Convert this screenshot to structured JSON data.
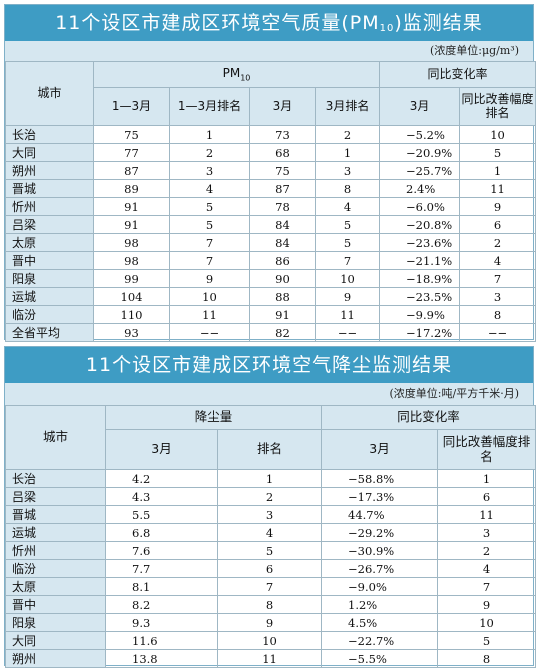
{
  "pm_table": {
    "title_main": "11个设区市建成区环境空气质量(PM",
    "title_sub": "10",
    "title_end": ")监测结果",
    "unit": "(浓度单位:μg/m³)",
    "header": {
      "city": "城市",
      "pm_group": "PM",
      "pm_group_sub": "10",
      "change_group": "同比变化率",
      "col_jan_mar": "1—3月",
      "col_jan_mar_rank": "1—3月排名",
      "col_mar": "3月",
      "col_mar_rank": "3月排名",
      "col_change_mar": "3月",
      "col_change_rank": "同比改善幅度排名"
    },
    "rows": [
      {
        "city": "长治",
        "q1": "75",
        "q1_rank": "1",
        "mar": "73",
        "mar_rank": "2",
        "change": "−5.2%",
        "change_rank": "10"
      },
      {
        "city": "大同",
        "q1": "77",
        "q1_rank": "2",
        "mar": "68",
        "mar_rank": "1",
        "change": "−20.9%",
        "change_rank": "5"
      },
      {
        "city": "朔州",
        "q1": "87",
        "q1_rank": "3",
        "mar": "75",
        "mar_rank": "3",
        "change": "−25.7%",
        "change_rank": "1"
      },
      {
        "city": "晋城",
        "q1": "89",
        "q1_rank": "4",
        "mar": "87",
        "mar_rank": "8",
        "change": "2.4%",
        "change_rank": "11"
      },
      {
        "city": "忻州",
        "q1": "91",
        "q1_rank": "5",
        "mar": "78",
        "mar_rank": "4",
        "change": "−6.0%",
        "change_rank": "9"
      },
      {
        "city": "吕梁",
        "q1": "91",
        "q1_rank": "5",
        "mar": "84",
        "mar_rank": "5",
        "change": "−20.8%",
        "change_rank": "6"
      },
      {
        "city": "太原",
        "q1": "98",
        "q1_rank": "7",
        "mar": "84",
        "mar_rank": "5",
        "change": "−23.6%",
        "change_rank": "2"
      },
      {
        "city": "晋中",
        "q1": "98",
        "q1_rank": "7",
        "mar": "86",
        "mar_rank": "7",
        "change": "−21.1%",
        "change_rank": "4"
      },
      {
        "city": "阳泉",
        "q1": "99",
        "q1_rank": "9",
        "mar": "90",
        "mar_rank": "10",
        "change": "−18.9%",
        "change_rank": "7"
      },
      {
        "city": "运城",
        "q1": "104",
        "q1_rank": "10",
        "mar": "88",
        "mar_rank": "9",
        "change": "−23.5%",
        "change_rank": "3"
      },
      {
        "city": "临汾",
        "q1": "110",
        "q1_rank": "11",
        "mar": "91",
        "mar_rank": "11",
        "change": "−9.9%",
        "change_rank": "8"
      },
      {
        "city": "全省平均",
        "q1": "93",
        "q1_rank": "−−",
        "mar": "82",
        "mar_rank": "−−",
        "change": "−17.2%",
        "change_rank": "−−"
      }
    ]
  },
  "dust_table": {
    "title": "11个设区市建成区环境空气降尘监测结果",
    "unit": "(浓度单位:吨/平方千米·月)",
    "header": {
      "city": "城市",
      "dust_group": "降尘量",
      "change_group": "同比变化率",
      "col_mar": "3月",
      "col_rank": "排名",
      "col_change_mar": "3月",
      "col_change_rank": "同比改善幅度排名"
    },
    "rows": [
      {
        "city": "长治",
        "mar": "4.2",
        "rank": "1",
        "change": "−58.8%",
        "change_rank": "1"
      },
      {
        "city": "吕梁",
        "mar": "4.3",
        "rank": "2",
        "change": "−17.3%",
        "change_rank": "6"
      },
      {
        "city": "晋城",
        "mar": "5.5",
        "rank": "3",
        "change": "44.7%",
        "change_rank": "11"
      },
      {
        "city": "运城",
        "mar": "6.8",
        "rank": "4",
        "change": "−29.2%",
        "change_rank": "3"
      },
      {
        "city": "忻州",
        "mar": "7.6",
        "rank": "5",
        "change": "−30.9%",
        "change_rank": "2"
      },
      {
        "city": "临汾",
        "mar": "7.7",
        "rank": "6",
        "change": "−26.7%",
        "change_rank": "4"
      },
      {
        "city": "太原",
        "mar": "8.1",
        "rank": "7",
        "change": "−9.0%",
        "change_rank": "7"
      },
      {
        "city": "晋中",
        "mar": "8.2",
        "rank": "8",
        "change": "1.2%",
        "change_rank": "9"
      },
      {
        "city": "阳泉",
        "mar": "9.3",
        "rank": "9",
        "change": "4.5%",
        "change_rank": "10"
      },
      {
        "city": "大同",
        "mar": "11.6",
        "rank": "10",
        "change": "−22.7%",
        "change_rank": "5"
      },
      {
        "city": "朔州",
        "mar": "13.8",
        "rank": "11",
        "change": "−5.5%",
        "change_rank": "8"
      }
    ]
  }
}
